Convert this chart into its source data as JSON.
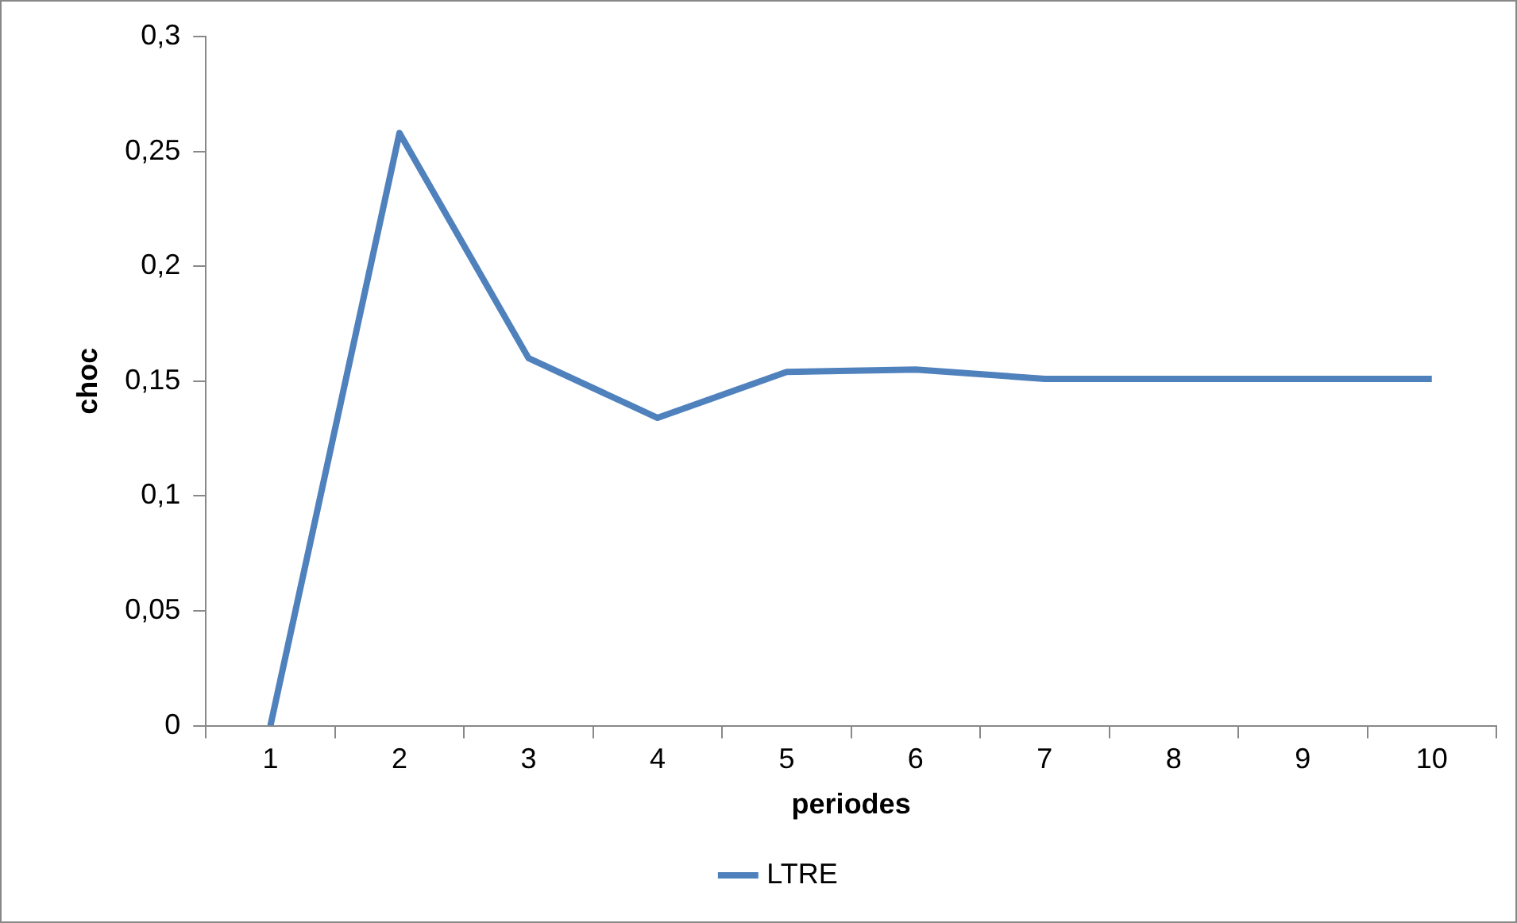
{
  "chart_data": {
    "type": "line",
    "xlabel": "periodes",
    "ylabel": "choc",
    "categories": [
      "1",
      "2",
      "3",
      "4",
      "5",
      "6",
      "7",
      "8",
      "9",
      "10"
    ],
    "series": [
      {
        "name": "LTRE",
        "color": "#4f81bd",
        "values": [
          0,
          0.258,
          0.16,
          0.134,
          0.154,
          0.155,
          0.151,
          0.151,
          0.151,
          0.151
        ]
      }
    ],
    "ylim": [
      0,
      0.3
    ],
    "yticks": [
      {
        "value": 0,
        "label": "0"
      },
      {
        "value": 0.05,
        "label": "0,05"
      },
      {
        "value": 0.1,
        "label": "0,1"
      },
      {
        "value": 0.15,
        "label": "0,15"
      },
      {
        "value": 0.2,
        "label": "0,2"
      },
      {
        "value": 0.25,
        "label": "0,25"
      },
      {
        "value": 0.3,
        "label": "0,3"
      }
    ],
    "grid": false,
    "legend": "bottom",
    "marker": "none",
    "line_style": "solid"
  }
}
